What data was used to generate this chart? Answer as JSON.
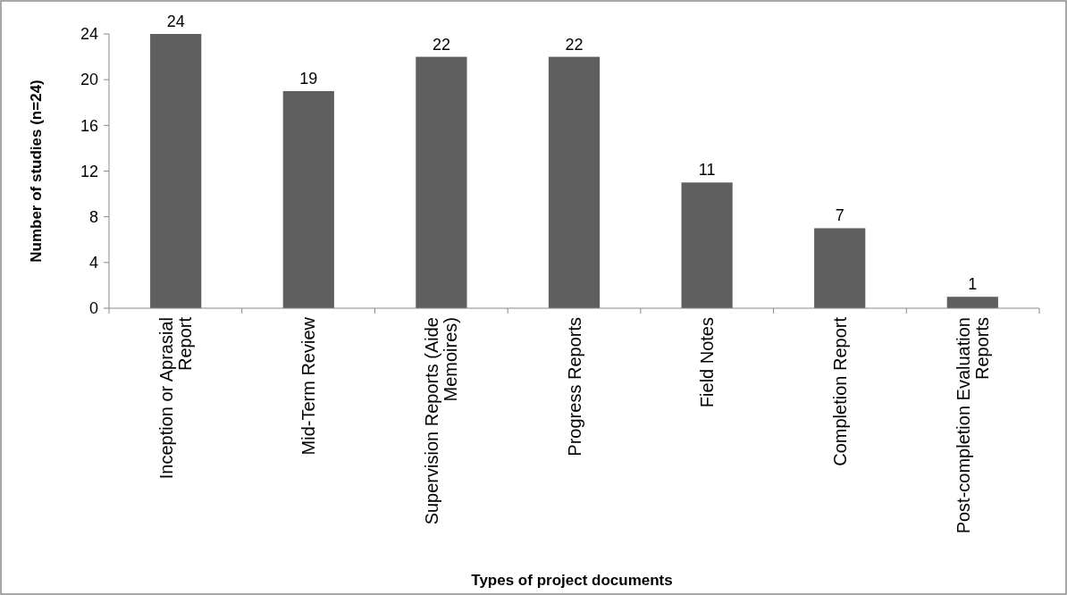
{
  "chart_data": {
    "type": "bar",
    "xlabel": "Types of project documents",
    "ylabel": "Number of studies (n=24)",
    "categories": [
      "Inception or Aprasial Report",
      "Mid-Term Review",
      "Supervision Reports (Aide Memoires)",
      "Progress Reports",
      "Field Notes",
      "Completion Report",
      "Post-completion Evaluation Reports"
    ],
    "values": [
      24,
      19,
      22,
      22,
      11,
      7,
      1
    ],
    "color": "#5f5f5f",
    "ylim": [
      0,
      24
    ],
    "yticks": [
      0,
      4,
      8,
      12,
      16,
      20,
      24
    ],
    "grid": false,
    "data_labels": true
  }
}
